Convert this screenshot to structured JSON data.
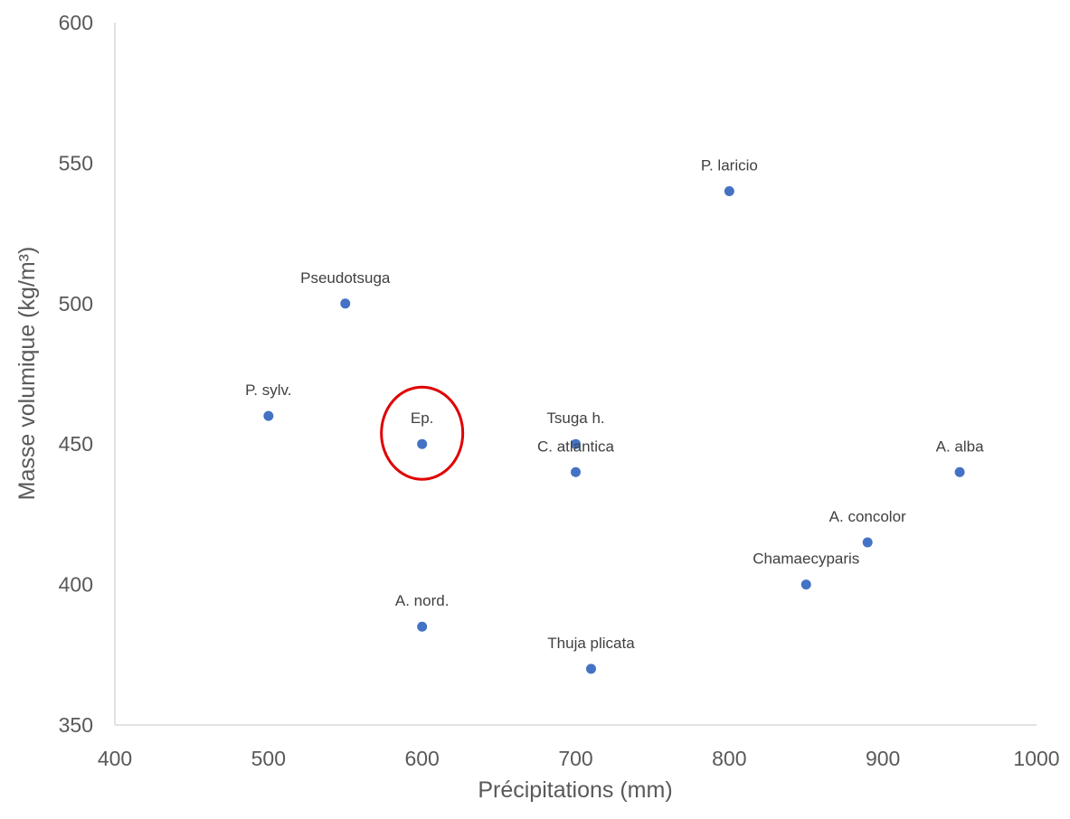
{
  "chart_data": {
    "type": "scatter",
    "xlabel": "Précipitations (mm)",
    "ylabel": "Masse volumique (kg/m³)",
    "xlim": [
      400,
      1000
    ],
    "ylim": [
      350,
      600
    ],
    "x_ticks": [
      400,
      500,
      600,
      700,
      800,
      900,
      1000
    ],
    "y_ticks": [
      350,
      400,
      450,
      500,
      550,
      600
    ],
    "grid": false,
    "marker_color": "#4472C4",
    "highlight_color": "#E00000",
    "points": [
      {
        "label": "P. laricio",
        "x": 800,
        "y": 540
      },
      {
        "label": "Pseudotsuga",
        "x": 550,
        "y": 500
      },
      {
        "label": "P. sylv.",
        "x": 500,
        "y": 460
      },
      {
        "label": "Ep.",
        "x": 600,
        "y": 450,
        "highlighted": true
      },
      {
        "label": "Tsuga h.",
        "x": 700,
        "y": 450
      },
      {
        "label": "C. atlantica",
        "x": 700,
        "y": 440
      },
      {
        "label": "A. alba",
        "x": 950,
        "y": 440
      },
      {
        "label": "A. concolor",
        "x": 890,
        "y": 415
      },
      {
        "label": "Chamaecyparis",
        "x": 850,
        "y": 400
      },
      {
        "label": "A. nord.",
        "x": 600,
        "y": 385
      },
      {
        "label": "Thuja plicata",
        "x": 710,
        "y": 370
      }
    ]
  }
}
